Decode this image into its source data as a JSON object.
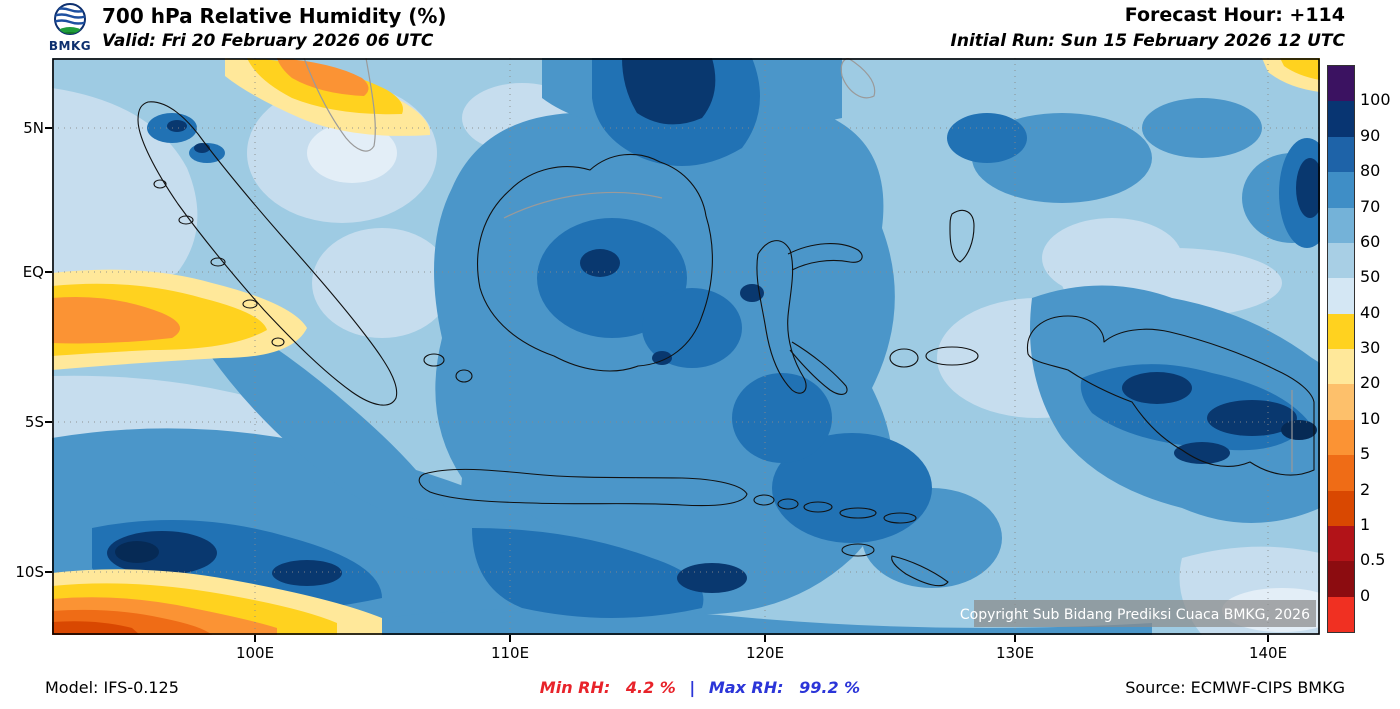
{
  "header": {
    "logo_text": "BMKG",
    "title": "700 hPa Relative Humidity (%)",
    "valid_line": "Valid: Fri 20 February 2026 06 UTC",
    "forecast_hour": "Forecast Hour: +114",
    "initial_run": "Initial Run: Sun 15 February 2026 12 UTC"
  },
  "map": {
    "lat_labels": [
      "5N",
      "EQ",
      "5S",
      "10S"
    ],
    "lon_labels": [
      "100E",
      "110E",
      "120E",
      "130E",
      "140E"
    ],
    "copyright": "Copyright Sub Bidang Prediksi Cuaca BMKG, 2026"
  },
  "colorbar": {
    "tick_labels": [
      "100",
      "90",
      "80",
      "70",
      "60",
      "50",
      "40",
      "30",
      "20",
      "10",
      "5",
      "2",
      "1",
      "0.5",
      "0"
    ],
    "segment_colors": [
      "#3b1261",
      "#083572",
      "#1e63a8",
      "#3f8ec6",
      "#74b2d8",
      "#a8cfe5",
      "#d4e7f4",
      "#ffd21f",
      "#ffe89a",
      "#fdc06b",
      "#fb9334",
      "#ef6c16",
      "#d94801",
      "#b21318",
      "#8c0c10",
      "#f03022"
    ]
  },
  "footer": {
    "model": "Model: IFS-0.125",
    "min_label": "Min RH:",
    "min_value": "4.2 %",
    "separator": "|",
    "max_label": "Max RH:",
    "max_value": "99.2 %",
    "source": "Source: ECMWF-CIPS BMKG"
  },
  "colors": {
    "min_text": "#e8232a",
    "max_text": "#2b35d8",
    "grid": "#8a8a8a",
    "coastline": "#000000"
  }
}
